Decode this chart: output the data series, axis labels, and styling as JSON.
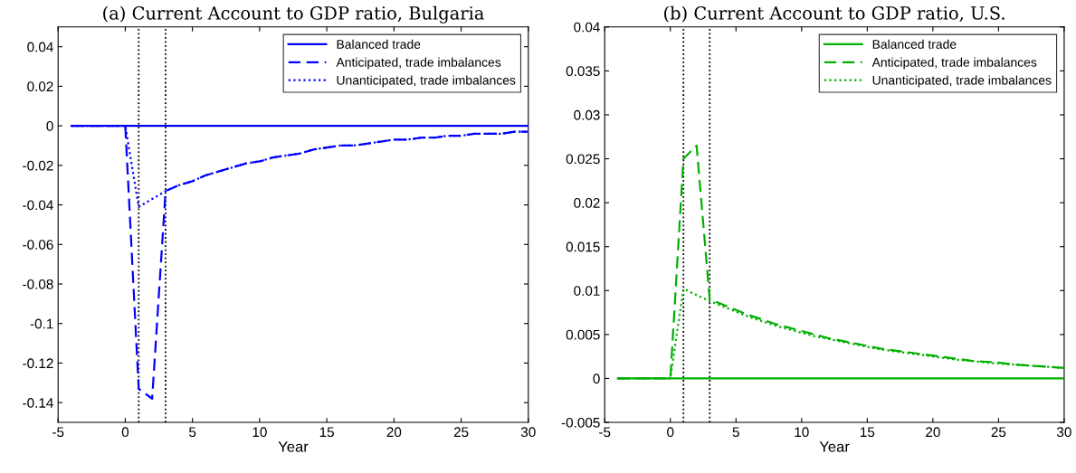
{
  "chart_data": [
    {
      "type": "line",
      "title": "(a) Current Account to GDP ratio, Bulgaria",
      "xlabel": "Year",
      "xlim": [
        -5,
        30
      ],
      "xticks": [
        -5,
        0,
        5,
        10,
        15,
        20,
        25,
        30
      ],
      "ylim": [
        -0.15,
        0.05
      ],
      "yticks": [
        -0.14,
        -0.12,
        -0.1,
        -0.08,
        -0.06,
        -0.04,
        -0.02,
        0,
        0.02,
        0.04
      ],
      "grid": false,
      "legend": "top right",
      "ref_lines": [
        {
          "axis": "x",
          "value": 1,
          "color": "#000000",
          "line_style": "dotted"
        },
        {
          "axis": "x",
          "value": 3,
          "color": "#000000",
          "line_style": "dotted"
        }
      ],
      "series": [
        {
          "name": "Balanced trade",
          "color": "#0000ff",
          "line_style": "solid",
          "x": [
            -4,
            30
          ],
          "values": [
            0,
            0
          ]
        },
        {
          "name": "Anticipated, trade imbalances",
          "color": "#0000ff",
          "line_style": "dashed",
          "x": [
            -4,
            0,
            1,
            2,
            3,
            4,
            5,
            6,
            7,
            8,
            9,
            10,
            11,
            12,
            13,
            14,
            15,
            16,
            17,
            18,
            19,
            20,
            21,
            22,
            23,
            24,
            25,
            26,
            27,
            28,
            29,
            30
          ],
          "values": [
            0,
            0,
            -0.133,
            -0.138,
            -0.033,
            -0.03,
            -0.028,
            -0.025,
            -0.023,
            -0.021,
            -0.019,
            -0.018,
            -0.016,
            -0.015,
            -0.014,
            -0.012,
            -0.011,
            -0.01,
            -0.01,
            -0.009,
            -0.008,
            -0.007,
            -0.007,
            -0.006,
            -0.006,
            -0.005,
            -0.005,
            -0.004,
            -0.004,
            -0.004,
            -0.003,
            -0.003
          ]
        },
        {
          "name": "Unanticipated, trade imbalances",
          "color": "#0000ff",
          "line_style": "dotted",
          "x": [
            -4,
            0,
            1,
            2,
            3,
            4,
            5,
            6,
            7,
            8,
            9,
            10,
            11,
            12,
            13,
            14,
            15,
            16,
            17,
            18,
            19,
            20,
            21,
            22,
            23,
            24,
            25,
            26,
            27,
            28,
            29,
            30
          ],
          "values": [
            0,
            0,
            -0.041,
            -0.037,
            -0.033,
            -0.03,
            -0.028,
            -0.025,
            -0.023,
            -0.021,
            -0.019,
            -0.018,
            -0.016,
            -0.015,
            -0.014,
            -0.012,
            -0.011,
            -0.01,
            -0.01,
            -0.009,
            -0.008,
            -0.007,
            -0.007,
            -0.006,
            -0.006,
            -0.005,
            -0.005,
            -0.004,
            -0.004,
            -0.004,
            -0.003,
            -0.003
          ]
        }
      ]
    },
    {
      "type": "line",
      "title": "(b) Current Account to GDP ratio, U.S.",
      "xlabel": "Year",
      "xlim": [
        -5,
        30
      ],
      "xticks": [
        -5,
        0,
        5,
        10,
        15,
        20,
        25,
        30
      ],
      "ylim": [
        -0.005,
        0.04
      ],
      "yticks": [
        -0.005,
        0,
        0.005,
        0.01,
        0.015,
        0.02,
        0.025,
        0.03,
        0.035,
        0.04
      ],
      "grid": false,
      "legend": "top right",
      "ref_lines": [
        {
          "axis": "x",
          "value": 1,
          "color": "#000000",
          "line_style": "dotted"
        },
        {
          "axis": "x",
          "value": 3,
          "color": "#000000",
          "line_style": "dotted"
        }
      ],
      "series": [
        {
          "name": "Balanced trade",
          "color": "#00b000",
          "line_style": "solid",
          "x": [
            -4,
            30
          ],
          "values": [
            0,
            0
          ]
        },
        {
          "name": "Anticipated, trade imbalances",
          "color": "#00b000",
          "line_style": "dashed",
          "x": [
            -4,
            0,
            1,
            2,
            3,
            4,
            5,
            6,
            7,
            8,
            9,
            10,
            11,
            12,
            13,
            14,
            15,
            16,
            17,
            18,
            19,
            20,
            21,
            22,
            23,
            24,
            25,
            26,
            27,
            28,
            29,
            30
          ],
          "values": [
            0,
            0,
            0.025,
            0.0265,
            0.009,
            0.0084,
            0.0078,
            0.0072,
            0.0067,
            0.0062,
            0.0058,
            0.0054,
            0.005,
            0.0046,
            0.0043,
            0.004,
            0.0037,
            0.0034,
            0.0032,
            0.003,
            0.0028,
            0.0026,
            0.0024,
            0.0022,
            0.002,
            0.0019,
            0.0018,
            0.0016,
            0.0015,
            0.0014,
            0.0013,
            0.0012
          ]
        },
        {
          "name": "Unanticipated, trade imbalances",
          "color": "#00b000",
          "line_style": "dotted",
          "x": [
            -4,
            0,
            1,
            2,
            3,
            4,
            5,
            6,
            7,
            8,
            9,
            10,
            11,
            12,
            13,
            14,
            15,
            16,
            17,
            18,
            19,
            20,
            21,
            22,
            23,
            24,
            25,
            26,
            27,
            28,
            29,
            30
          ],
          "values": [
            0,
            0,
            0.0102,
            0.0095,
            0.0088,
            0.0082,
            0.0076,
            0.007,
            0.0065,
            0.006,
            0.0056,
            0.0052,
            0.0048,
            0.0045,
            0.0042,
            0.0039,
            0.0036,
            0.0033,
            0.0031,
            0.0029,
            0.0027,
            0.0025,
            0.0023,
            0.0021,
            0.002,
            0.0018,
            0.0017,
            0.0016,
            0.0015,
            0.0014,
            0.0013,
            0.0012
          ]
        }
      ]
    }
  ]
}
